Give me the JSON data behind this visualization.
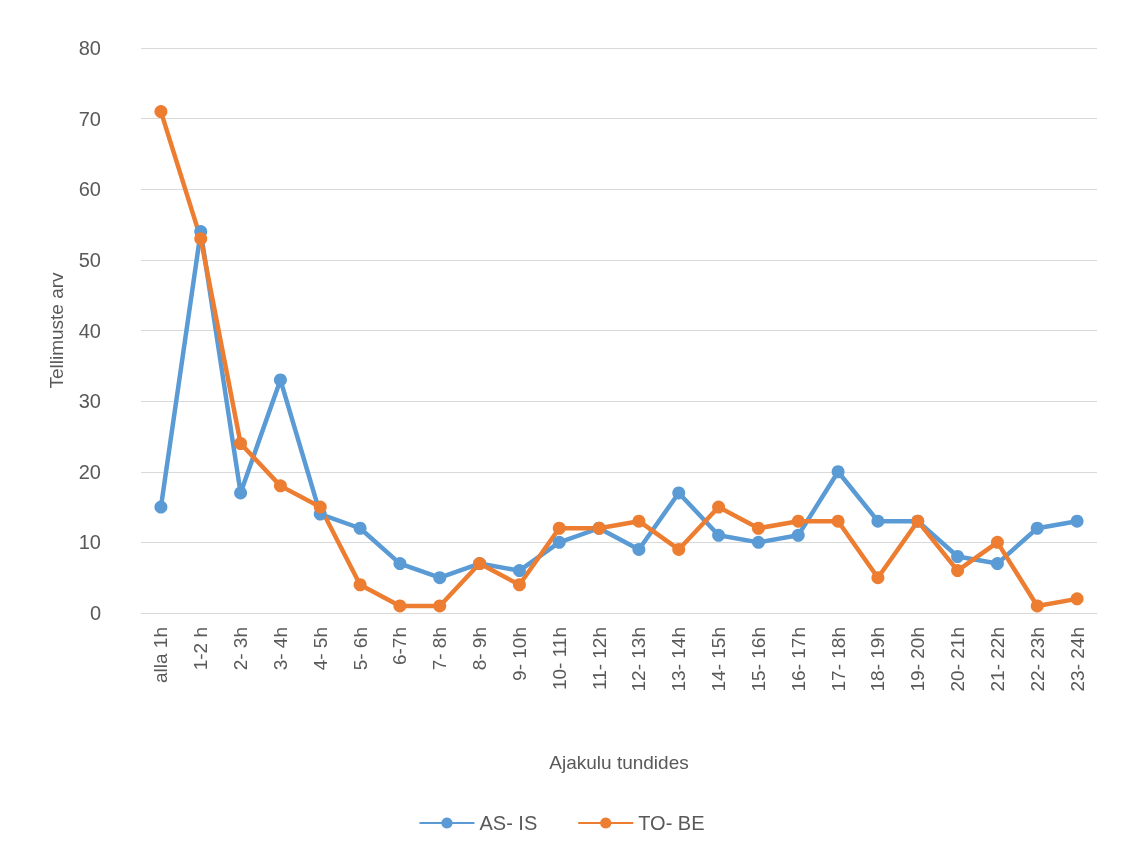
{
  "chart_data": {
    "type": "line",
    "xlabel": "Ajakulu tundides",
    "ylabel": "Tellimuste arv",
    "categories": [
      "alla 1h",
      "1-2 h",
      "2- 3h",
      "3- 4h",
      "4- 5h",
      "5- 6h",
      "6-7h",
      "7- 8h",
      "8- 9h",
      "9- 10h",
      "10- 11h",
      "11- 12h",
      "12- 13h",
      "13- 14h",
      "14- 15h",
      "15- 16h",
      "16- 17h",
      "17- 18h",
      "18- 19h",
      "19- 20h",
      "20- 21h",
      "21- 22h",
      "22- 23h",
      "23- 24h"
    ],
    "series": [
      {
        "name": "AS- IS",
        "color": "#5b9bd5",
        "values": [
          15,
          54,
          17,
          33,
          14,
          12,
          7,
          5,
          7,
          6,
          10,
          12,
          9,
          17,
          11,
          10,
          11,
          20,
          13,
          13,
          8,
          7,
          12,
          13
        ]
      },
      {
        "name": "TO- BE",
        "color": "#ed7d31",
        "values": [
          71,
          53,
          24,
          18,
          15,
          4,
          1,
          1,
          7,
          4,
          12,
          12,
          13,
          9,
          15,
          12,
          13,
          13,
          5,
          13,
          6,
          10,
          1,
          2
        ]
      }
    ],
    "ylim": [
      0,
      80
    ],
    "yticks": [
      0,
      10,
      20,
      30,
      40,
      50,
      60,
      70,
      80
    ],
    "grid": "y",
    "legend": "bottom",
    "marker": "circle",
    "line_style": "solid"
  }
}
